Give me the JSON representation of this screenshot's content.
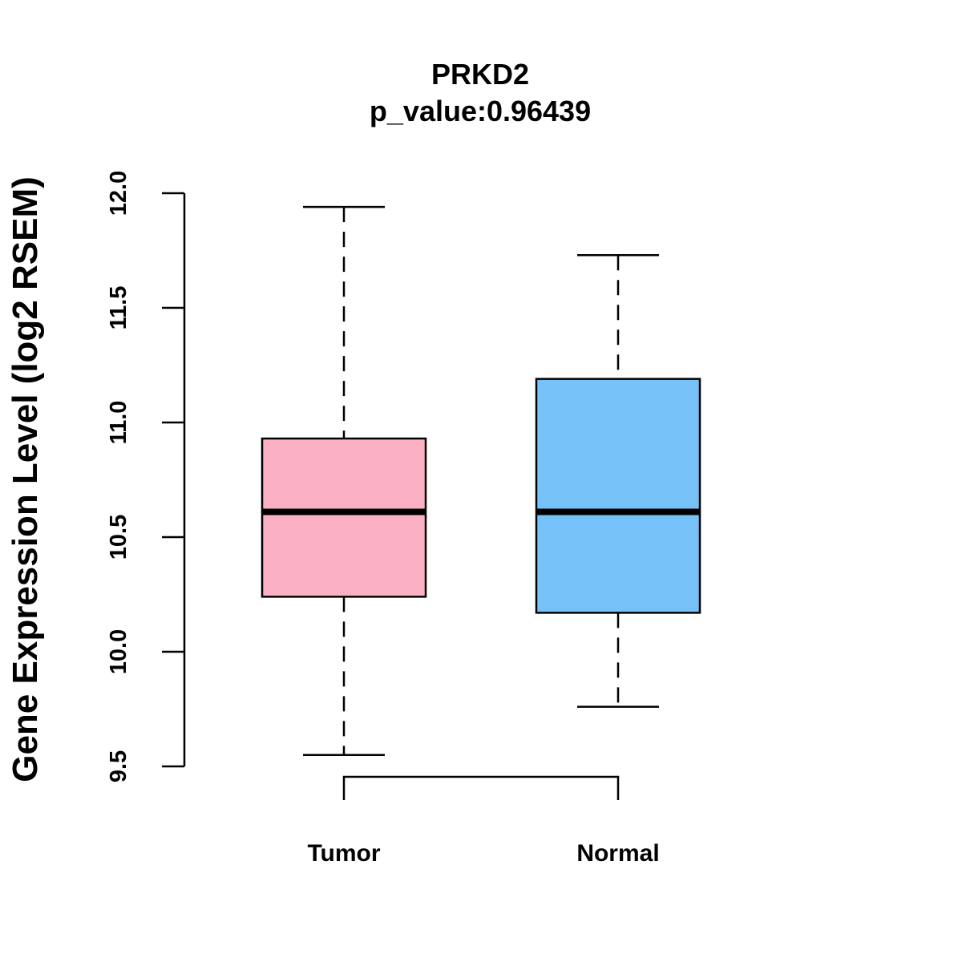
{
  "chart_data": {
    "type": "box",
    "title": "PRKD2",
    "subtitle": "p_value:0.96439",
    "xlabel": "",
    "ylabel": "Gene Expression Level (log2 RSEM)",
    "ylim": [
      9.5,
      12.0
    ],
    "yticks": [
      "9.5",
      "10.0",
      "10.5",
      "11.0",
      "11.5",
      "12.0"
    ],
    "categories": [
      "Tumor",
      "Normal"
    ],
    "boxes": [
      {
        "label": "Tumor",
        "color": "#FBB1C3",
        "min": 9.55,
        "q1": 10.24,
        "median": 10.61,
        "q3": 10.93,
        "max": 11.94
      },
      {
        "label": "Normal",
        "color": "#77C1F9",
        "min": 9.76,
        "q1": 10.17,
        "median": 10.61,
        "q3": 11.19,
        "max": 11.73
      }
    ],
    "comparison_bracket": [
      "Tumor",
      "Normal"
    ],
    "grid": false,
    "legend": "none"
  }
}
